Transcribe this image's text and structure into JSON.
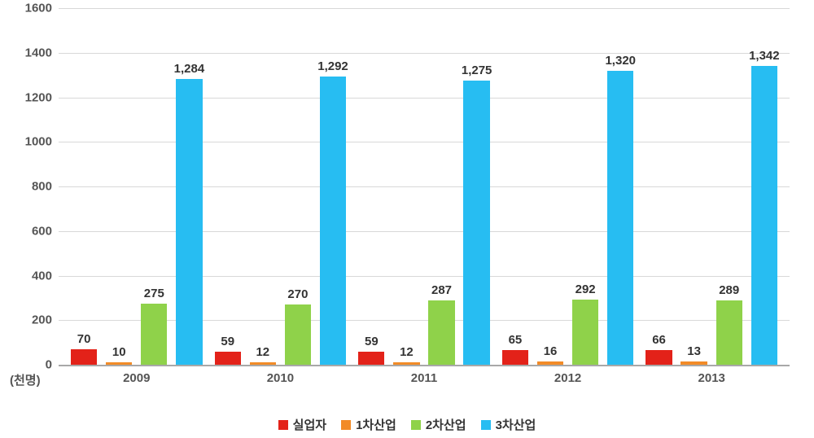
{
  "chart": {
    "type": "bar",
    "background_color": "#ffffff",
    "grid_color": "#d8d8d8",
    "axis_color": "#a8a8a8",
    "text_color": "#555555",
    "label_color": "#333333",
    "y_unit_label": "(천명)",
    "ylim": [
      0,
      1600
    ],
    "ytick_step": 200,
    "yticks": [
      0,
      200,
      400,
      600,
      800,
      1000,
      1200,
      1400,
      1600
    ],
    "tick_fontsize": 15,
    "tick_fontweight": "bold",
    "data_label_fontsize": 15,
    "data_label_fontweight": "bold",
    "bar_width_pct": 3.6,
    "group_gap_pct": 1.2,
    "categories": [
      "2009",
      "2010",
      "2011",
      "2012",
      "2013"
    ],
    "series": [
      {
        "name": "실업자",
        "color": "#e32219",
        "values": [
          70,
          59,
          59,
          65,
          66
        ],
        "labels": [
          "70",
          "59",
          "59",
          "65",
          "66"
        ]
      },
      {
        "name": "1차산업",
        "color": "#f28b27",
        "values": [
          10,
          12,
          12,
          16,
          13
        ],
        "labels": [
          "10",
          "12",
          "12",
          "16",
          "13"
        ]
      },
      {
        "name": "2차산업",
        "color": "#8fd24a",
        "values": [
          275,
          270,
          287,
          292,
          289
        ],
        "labels": [
          "275",
          "270",
          "287",
          "292",
          "289"
        ]
      },
      {
        "name": "3차산업",
        "color": "#27bdf2",
        "values": [
          1284,
          1292,
          1275,
          1320,
          1342
        ],
        "labels": [
          "1,284",
          "1,292",
          "1,275",
          "1,320",
          "1,342"
        ]
      }
    ],
    "legend": {
      "position": "bottom-center",
      "swatch_size": 12,
      "item_gap": 18,
      "fontsize": 15,
      "fontweight": "bold"
    }
  }
}
